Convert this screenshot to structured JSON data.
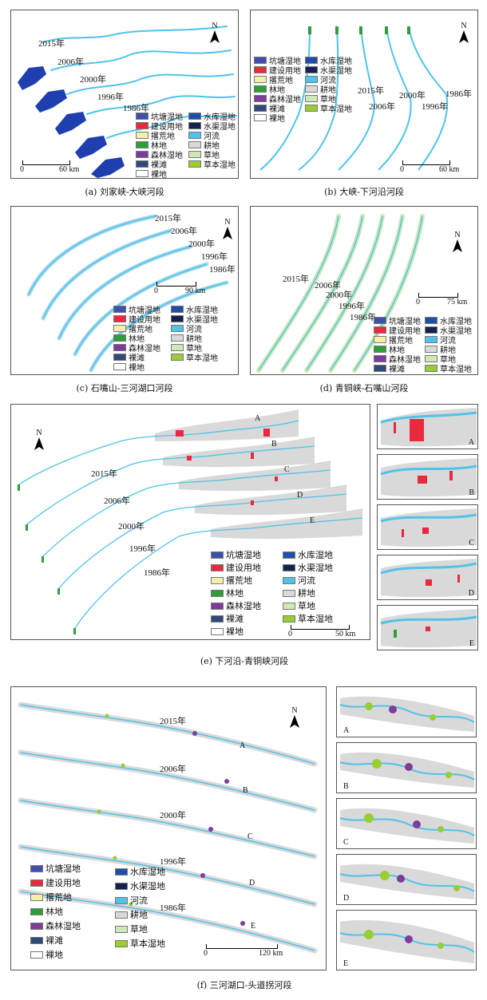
{
  "legend_classes": [
    {
      "id": "pond",
      "label": "坑塘湿地",
      "color": "#3f4fb0"
    },
    {
      "id": "construction",
      "label": "建设用地",
      "color": "#e8293e"
    },
    {
      "id": "fallow",
      "label": "撂荒地",
      "color": "#f5f0a8"
    },
    {
      "id": "forest",
      "label": "林地",
      "color": "#2f9e3a"
    },
    {
      "id": "forest_wetland",
      "label": "森林湿地",
      "color": "#7d3c98"
    },
    {
      "id": "bare_beach",
      "label": "裸滩",
      "color": "#2f4a7a"
    },
    {
      "id": "bare_land",
      "label": "裸地",
      "color": "#ffffff"
    },
    {
      "id": "reservoir",
      "label": "水库湿地",
      "color": "#1f4ea8"
    },
    {
      "id": "canal",
      "label": "水渠湿地",
      "color": "#13234e"
    },
    {
      "id": "river",
      "label": "河流",
      "color": "#4fc3e8"
    },
    {
      "id": "farmland",
      "label": "耕地",
      "color": "#d9d9d9"
    },
    {
      "id": "grassland",
      "label": "草地",
      "color": "#cfe8b8"
    },
    {
      "id": "herb_wetland",
      "label": "草本湿地",
      "color": "#9acd32"
    }
  ],
  "north_label": "N",
  "panels": {
    "a": {
      "caption": "(a) 刘家峡-大峡河段",
      "years": [
        "2015年",
        "2006年",
        "2000年",
        "1996年",
        "1986年"
      ],
      "scale": {
        "start": "0",
        "end": "60 km"
      }
    },
    "b": {
      "caption": "(b) 大峡-下河沿河段",
      "years": [
        "2015年",
        "2006年",
        "2000年",
        "1996年",
        "1986年"
      ],
      "scale": {
        "start": "0",
        "end": "60 km"
      }
    },
    "c": {
      "caption": "(c) 石嘴山-三河湖口河段",
      "years": [
        "2015年",
        "2006年",
        "2000年",
        "1996年",
        "1986年"
      ],
      "scale": {
        "start": "0",
        "end": "90 km"
      }
    },
    "d": {
      "caption": "(d) 青铜峡-石嘴山河段",
      "years": [
        "2015年",
        "2006年",
        "2000年",
        "1996年",
        "1986年"
      ],
      "scale": {
        "start": "0",
        "end": "75 km"
      }
    },
    "e": {
      "caption": "(e) 下河沿-青铜峡河段",
      "years": [
        "2015年",
        "2006年",
        "2000年",
        "1996年",
        "1986年"
      ],
      "scale": {
        "start": "0",
        "end": "50 km"
      },
      "strip_labels": [
        "A",
        "B",
        "C",
        "D",
        "E"
      ],
      "inset_labels": [
        "A",
        "B",
        "C",
        "D",
        "E"
      ]
    },
    "f": {
      "caption": "(f) 三河湖口-头道拐河段",
      "years": [
        "2015年",
        "2006年",
        "2000年",
        "1996年",
        "1986年"
      ],
      "scale": {
        "start": "0",
        "end": "120 km"
      },
      "strip_labels": [
        "A",
        "B",
        "C",
        "D",
        "E"
      ],
      "inset_labels": [
        "A",
        "B",
        "C",
        "D",
        "E"
      ]
    }
  }
}
